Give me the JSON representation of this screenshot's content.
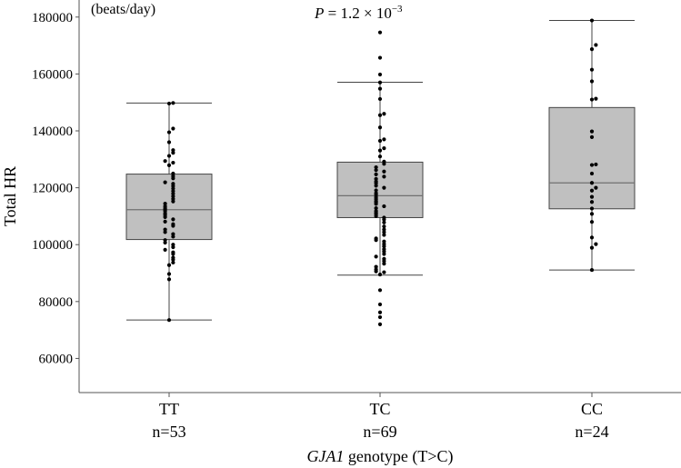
{
  "chart_data": {
    "type": "boxplot",
    "title": "",
    "annotation": {
      "symbol": "P",
      "text": " = 1.2 × 10",
      "exponent": "−3"
    },
    "ylabel": "Total HR",
    "yunit": "(beats/day)",
    "xlabel_italic": "GJA1",
    "xlabel_rest": " genotype (T>C)",
    "ylim": [
      48000,
      186000
    ],
    "yticks": [
      60000,
      80000,
      100000,
      120000,
      140000,
      160000,
      180000
    ],
    "ytick_labels": [
      "60000",
      "80000",
      "100000",
      "120000",
      "140000",
      "160000",
      "180000"
    ],
    "colors": {
      "box": "#c0c0c0",
      "median": "#707070",
      "dot": "#000000",
      "axis": "#555555"
    },
    "groups": [
      {
        "category": "TT",
        "n_label": "n=53",
        "stats": {
          "min": 73500,
          "q1": 101800,
          "median": 112300,
          "q3": 124800,
          "max": 149800
        },
        "points": [
          149800,
          149600,
          140800,
          139500,
          136000,
          133200,
          132300,
          131200,
          129400,
          128800,
          127900,
          125000,
          124100,
          123300,
          121900,
          121400,
          120600,
          119700,
          118800,
          117900,
          117000,
          116100,
          115200,
          114400,
          113500,
          112800,
          112300,
          111800,
          111000,
          110400,
          109700,
          108900,
          108100,
          107200,
          106600,
          105300,
          104400,
          103700,
          102800,
          101600,
          100700,
          100000,
          99100,
          98200,
          97300,
          96700,
          95400,
          94700,
          93700,
          92800,
          89700,
          87800,
          73500
        ]
      },
      {
        "category": "TC",
        "n_label": "n=69",
        "stats": {
          "min": 89300,
          "q1": 109500,
          "median": 117200,
          "q3": 129000,
          "max": 157100
        },
        "points": [
          174600,
          165700,
          159800,
          157000,
          154800,
          151200,
          146000,
          145500,
          141200,
          137000,
          136500,
          133900,
          133100,
          131000,
          129200,
          128400,
          127200,
          126200,
          125700,
          124700,
          123900,
          123100,
          122200,
          121600,
          120700,
          120000,
          119100,
          118100,
          117500,
          116700,
          116000,
          115300,
          114900,
          114300,
          113500,
          112800,
          111800,
          111200,
          110700,
          110000,
          109500,
          108800,
          107800,
          106400,
          105300,
          104400,
          103400,
          102200,
          101600,
          101100,
          100200,
          99400,
          98400,
          97600,
          96700,
          95800,
          95000,
          94200,
          93300,
          92200,
          91300,
          90600,
          90300,
          89500,
          84000,
          79000,
          76200,
          74500,
          72000
        ]
      },
      {
        "category": "CC",
        "n_label": "n=24",
        "stats": {
          "min": 91100,
          "q1": 112600,
          "median": 121700,
          "q3": 148200,
          "max": 178800
        },
        "points": [
          178800,
          170200,
          168700,
          161500,
          157400,
          151300,
          151000,
          139800,
          137800,
          128200,
          128000,
          125000,
          121700,
          120000,
          119000,
          116800,
          115000,
          112700,
          110800,
          108000,
          102500,
          100200,
          98900,
          91100
        ]
      }
    ]
  }
}
